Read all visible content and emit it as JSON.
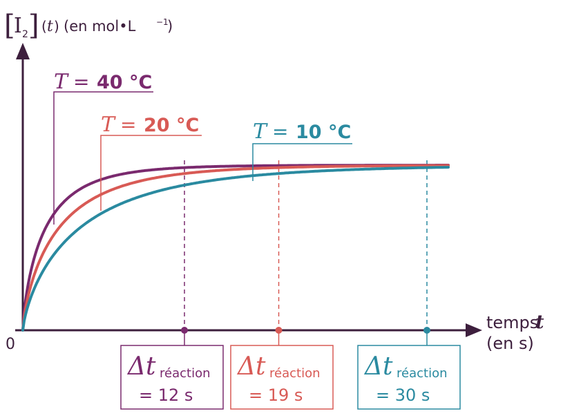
{
  "colors": {
    "axis": "#3d1f3d",
    "t40": "#7a2a6e",
    "t20": "#d85a55",
    "t10": "#2a8aa0"
  },
  "y_axis_label": {
    "bracket_open": "[",
    "species": "I",
    "subscript": "2",
    "bracket_close": "]",
    "var_open": "(",
    "var": "t",
    "var_close": ")",
    "unit": "(en mol•L",
    "unit_exp": "−1",
    "unit_close": ")"
  },
  "x_axis_label": {
    "line1": "temps",
    "var": "t",
    "line2": "(en s)"
  },
  "origin_label": "0",
  "chart_data": {
    "type": "line",
    "xlabel": "temps t (en s)",
    "ylabel": "[I2](t) (en mol•L−1)",
    "series": [
      {
        "key": "t40",
        "name_var": "T",
        "name_eq": "=",
        "name_value": "40 °C",
        "reaction_time": 12,
        "reaction_label": "Δt",
        "reaction_sub": "réaction",
        "reaction_value": "= 12 s"
      },
      {
        "key": "t20",
        "name_var": "T",
        "name_eq": "=",
        "name_value": "20 °C",
        "reaction_time": 19,
        "reaction_label": "Δt",
        "reaction_sub": "réaction",
        "reaction_value": "= 19 s"
      },
      {
        "key": "t10",
        "name_var": "T",
        "name_eq": "=",
        "name_value": "10 °C",
        "reaction_time": 30,
        "reaction_label": "Δt",
        "reaction_sub": "réaction",
        "reaction_value": "= 30 s"
      }
    ],
    "y_max": 1.0,
    "x_max": 36,
    "grid": false
  }
}
